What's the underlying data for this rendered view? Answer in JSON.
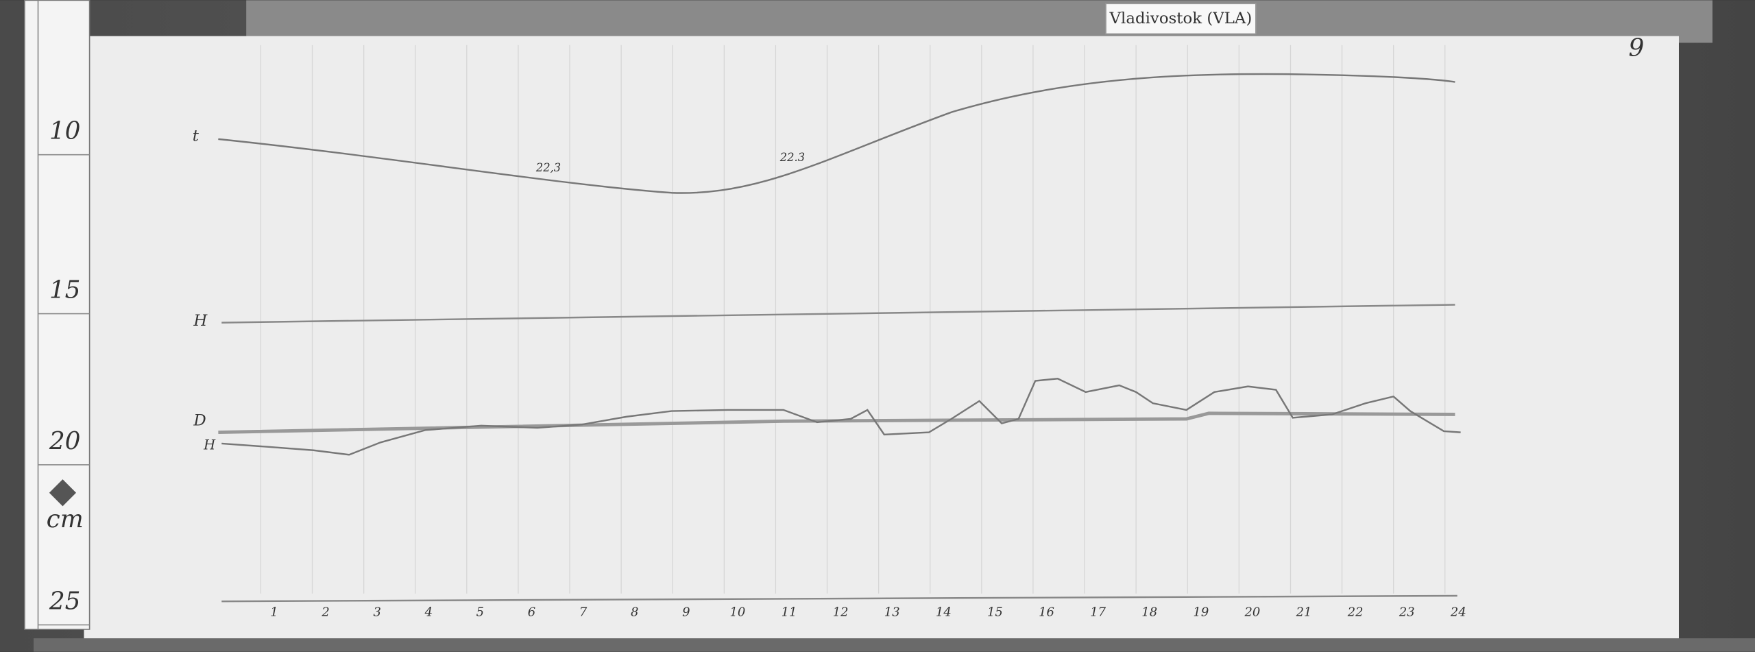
{
  "label": "Vladivostok (VLA)",
  "page_number": "9",
  "scale": {
    "ticks": [
      "10",
      "15",
      "20",
      "25"
    ],
    "unit": "cm"
  },
  "traces": {
    "t": "t",
    "h0": "H",
    "d": "D",
    "h": "H",
    "t_marks": [
      "22,3",
      "22.3"
    ]
  },
  "hours": [
    "1",
    "2",
    "3",
    "4",
    "5",
    "6",
    "7",
    "8",
    "9",
    "10",
    "11",
    "12",
    "13",
    "14",
    "15",
    "16",
    "17",
    "18",
    "19",
    "20",
    "21",
    "22",
    "23",
    "24"
  ]
}
